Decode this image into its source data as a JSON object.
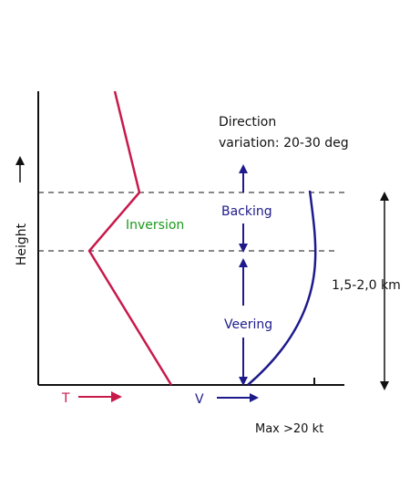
{
  "labels": {
    "direction": "Direction",
    "variation": "variation: 20-30 deg",
    "backing": "Backing",
    "inversion": "Inversion",
    "veering": "Veering",
    "layer_depth": "1,5-2,0 km",
    "y_axis": "Height",
    "t_axis": "T",
    "v_axis": "V",
    "max_wind": "Max >20 kt"
  }
}
